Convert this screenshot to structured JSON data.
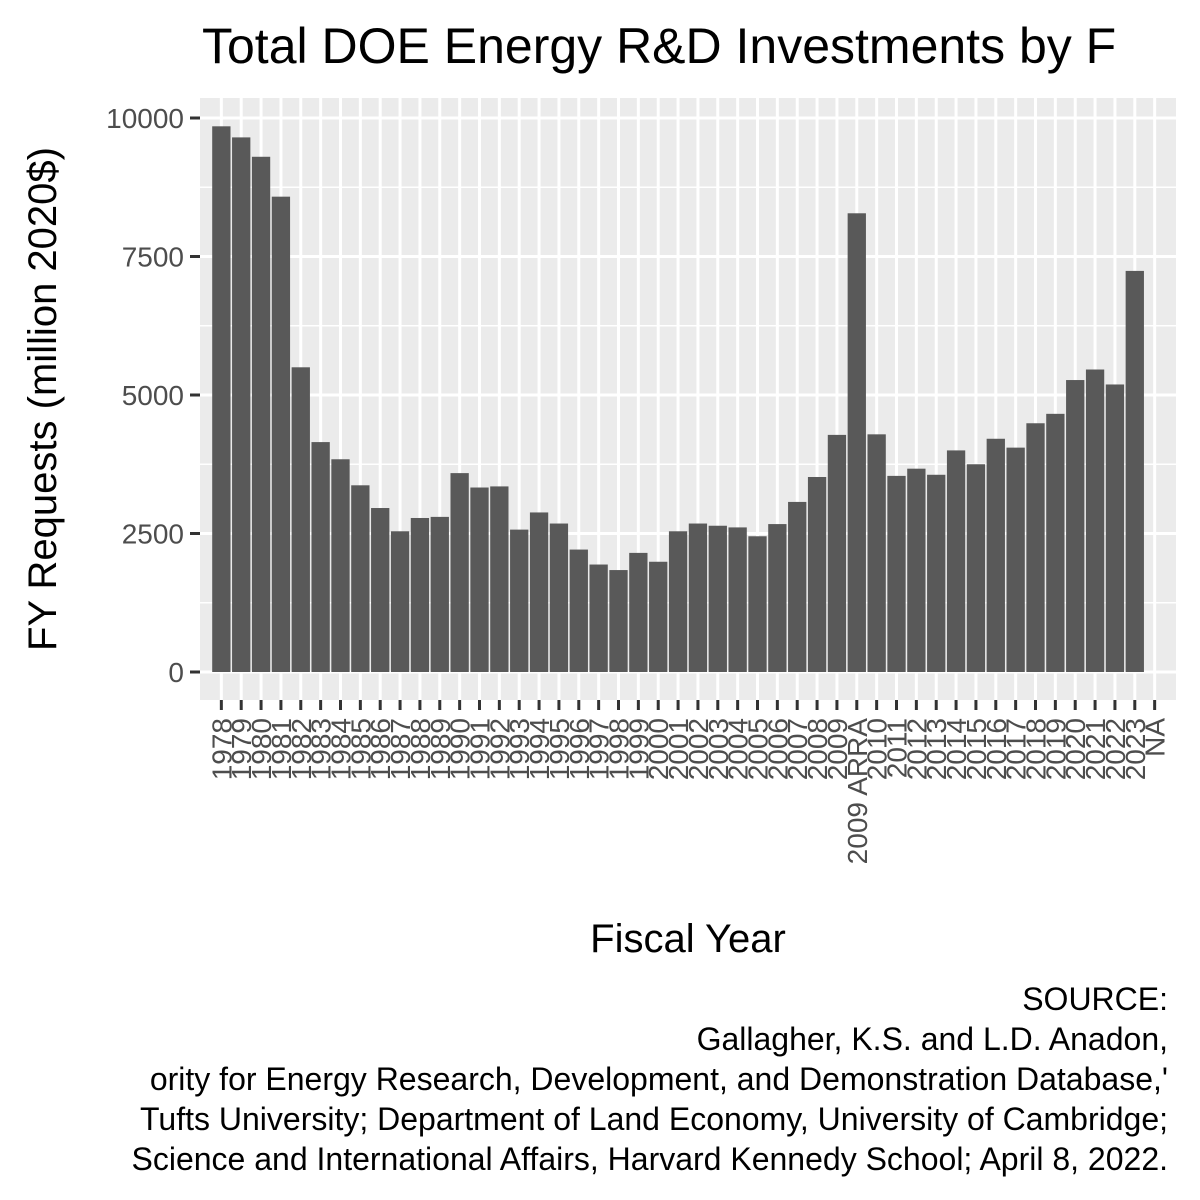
{
  "chart_data": {
    "type": "bar",
    "title": "Total DOE Energy R&D Investments by F",
    "xlabel": "Fiscal Year",
    "ylabel": "FY Requests (million 2020$)",
    "ylim": [
      0,
      10300
    ],
    "yticks": [
      "0",
      "2500",
      "5000",
      "7500",
      "10000"
    ],
    "ytick_values": [
      0,
      2500,
      5000,
      7500,
      10000
    ],
    "grid": true,
    "colors": {
      "panel": "#ebebeb",
      "grid": "#ffffff",
      "bar": "#595959",
      "tick_text": "#4d4d4d"
    },
    "categories": [
      "1978",
      "1979",
      "1980",
      "1981",
      "1982",
      "1983",
      "1984",
      "1985",
      "1986",
      "1987",
      "1988",
      "1989",
      "1990",
      "1991",
      "1992",
      "1993",
      "1994",
      "1995",
      "1996",
      "1997",
      "1998",
      "1999",
      "2000",
      "2001",
      "2002",
      "2003",
      "2004",
      "2005",
      "2006",
      "2007",
      "2008",
      "2009",
      "2009 ARRA",
      "2010",
      "2011",
      "2012",
      "2013",
      "2014",
      "2015",
      "2016",
      "2017",
      "2018",
      "2019",
      "2020",
      "2021",
      "2022",
      "2023",
      "NA"
    ],
    "values": [
      9850,
      9650,
      9300,
      8580,
      5500,
      4150,
      3840,
      3370,
      2960,
      2540,
      2780,
      2800,
      3590,
      3330,
      3350,
      2570,
      2880,
      2680,
      2210,
      1940,
      1840,
      2150,
      1990,
      2540,
      2680,
      2640,
      2610,
      2450,
      2670,
      3070,
      3520,
      4280,
      8280,
      4290,
      3540,
      3670,
      3560,
      4000,
      3750,
      4210,
      4050,
      4490,
      4660,
      5270,
      5460,
      5190,
      7240,
      null
    ]
  },
  "caption": {
    "lines": [
      "SOURCE:",
      "Gallagher, K.S. and L.D. Anadon,",
      "ority for Energy Research, Development, and Demonstration Database,'",
      "Tufts University; Department of Land Economy, University of Cambridge;",
      "Science and International Affairs, Harvard Kennedy School; April 8, 2022."
    ]
  }
}
